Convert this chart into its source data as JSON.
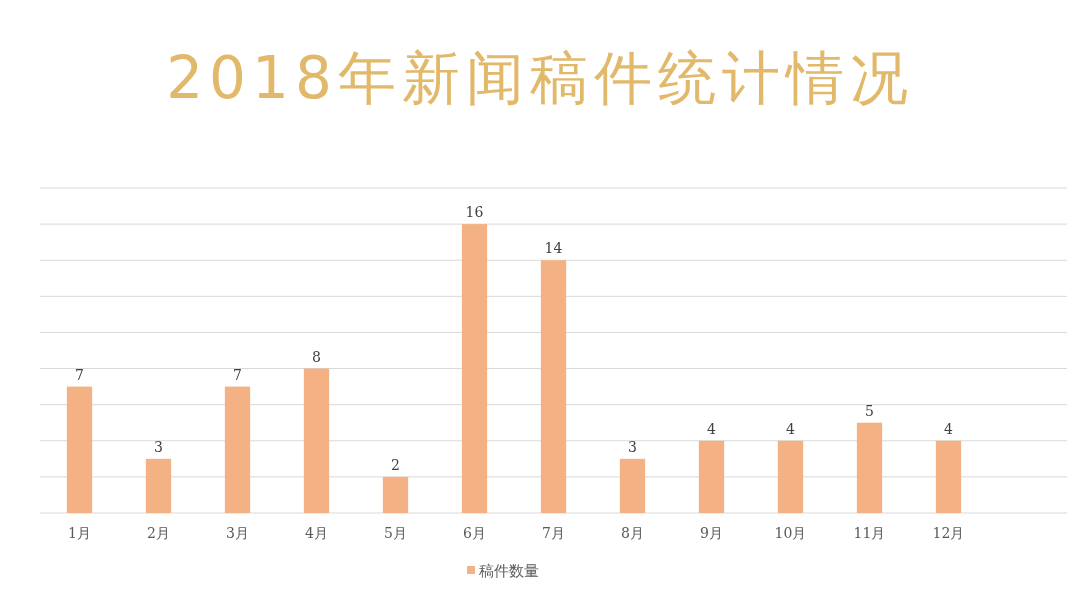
{
  "chart_data": {
    "type": "bar",
    "title": "2018年新闻稿件统计情况",
    "categories": [
      "1月",
      "2月",
      "3月",
      "4月",
      "5月",
      "6月",
      "7月",
      "8月",
      "9月",
      "10月",
      "11月",
      "12月",
      null
    ],
    "series": [
      {
        "name": "稿件数量",
        "color": "#f4b183",
        "values": [
          7,
          3,
          7,
          8,
          2,
          16,
          14,
          3,
          4,
          4,
          5,
          4,
          null
        ]
      }
    ],
    "ylim": [
      0,
      18
    ],
    "yticks": [
      {
        "value": 0,
        "label": null
      },
      {
        "value": 2,
        "label": null
      },
      {
        "value": 4,
        "label": null
      },
      {
        "value": 6,
        "label": null
      },
      {
        "value": 8,
        "label": null
      },
      {
        "value": 10,
        "label": null
      },
      {
        "value": 12,
        "label": null
      },
      {
        "value": 14,
        "label": null
      },
      {
        "value": 16,
        "label": null
      },
      {
        "value": 18,
        "label": null
      }
    ],
    "grid": "y",
    "data_labels": true,
    "legend": "bottom",
    "tick_labels": "x"
  }
}
